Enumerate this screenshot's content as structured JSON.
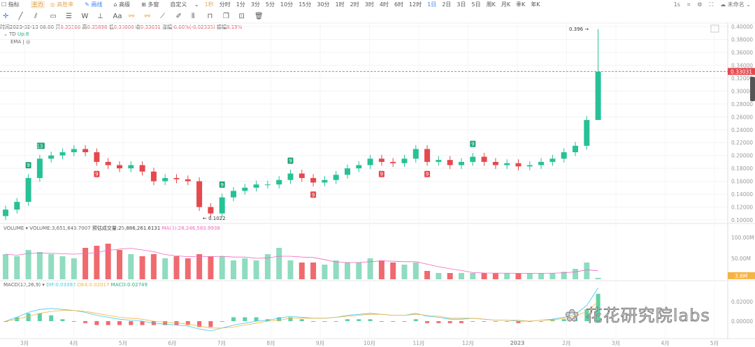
{
  "toolbar": {
    "indicator": "指标",
    "main_badge": "主力",
    "win_rate": "高胜率",
    "draw": "画线",
    "advanced": "高级",
    "multi_window": "多窗",
    "custom": "自定义",
    "custom_interval": "1秒",
    "intervals": [
      "分时",
      "1分",
      "3分",
      "5分",
      "10分",
      "15分",
      "30分",
      "1时",
      "2时",
      "3时",
      "4时",
      "6时",
      "12时",
      "1日",
      "2日",
      "3日",
      "5日",
      "周K",
      "月K",
      "季K",
      "年K"
    ],
    "active_interval": "1日",
    "right": {
      "speed": "1s",
      "layout_name": "未命名"
    },
    "drawing_tools": [
      "crosshair-icon",
      "line-icon",
      "parallel-line-icon",
      "rectangle-icon",
      "fib-icon",
      "wave-icon",
      "text-tool-icon",
      "text-icon",
      "magnet-icon",
      "magnet-strong-icon",
      "ruler-icon",
      "pencil-icon",
      "lock-icon",
      "unlock-icon",
      "copy-icon",
      "hide-icon",
      "trash-icon"
    ],
    "text_tool_label": "Aa"
  },
  "info": {
    "time_label": "时间",
    "time": "2023-02-13 08:00",
    "open_label": "开",
    "open": "0.35366",
    "high_label": "高",
    "high": "0.35898",
    "low_label": "低",
    "low": "0.33000",
    "close_label": "收",
    "close": "0.33031",
    "change_label": "涨幅",
    "change": "-6.60%(-0.02335)",
    "amp_label": "振幅",
    "amp": "8.19%"
  },
  "indicators": {
    "td": "TD",
    "td_value": "Up:8",
    "ema": "EMA"
  },
  "volume_info": {
    "name": "VOLUME",
    "volume": "VOLUME:3,651,640.7007",
    "est": "预估成交量:25,886,261.6131",
    "ma": "MA(5):28,246,583.9938"
  },
  "macd_info": {
    "name": "MACD(12,26,9)",
    "dif": "DIF:0.03392",
    "dea": "DEA:0.02017",
    "macd": "MACD:0.02749"
  },
  "colors": {
    "up": "#26c196",
    "down": "#e5484d",
    "ma": "#f067c0",
    "dif": "#46c8e0",
    "dea": "#f5b342",
    "accent": "#3b82f6"
  },
  "watermark": "花花研究院labs",
  "chart_data": {
    "type": "candlestick",
    "period": "weekly approximation of daily candles",
    "x_labels": [
      "3月",
      "4月",
      "5月",
      "6月",
      "7月",
      "8月",
      "9月",
      "10月",
      "11月",
      "12月",
      "2023",
      "2月",
      "3月",
      "4月",
      "5月"
    ],
    "price_ticks": [
      "0.40000",
      "0.38000",
      "0.36000",
      "0.34000",
      "0.32000",
      "0.30000",
      "0.28000",
      "0.26000",
      "0.24000",
      "0.22000",
      "0.20000",
      "0.18000",
      "0.16000",
      "0.14000",
      "0.12000",
      "0.10000"
    ],
    "ylim": [
      0.1,
      0.4
    ],
    "close": [
      0.116,
      0.128,
      0.165,
      0.195,
      0.2,
      0.205,
      0.21,
      0.205,
      0.19,
      0.185,
      0.18,
      0.185,
      0.175,
      0.16,
      0.165,
      0.163,
      0.16,
      0.12,
      0.11,
      0.135,
      0.145,
      0.15,
      0.155,
      0.155,
      0.162,
      0.172,
      0.165,
      0.158,
      0.162,
      0.17,
      0.18,
      0.185,
      0.195,
      0.19,
      0.188,
      0.195,
      0.21,
      0.19,
      0.193,
      0.185,
      0.19,
      0.198,
      0.19,
      0.185,
      0.188,
      0.183,
      0.185,
      0.19,
      0.195,
      0.205,
      0.215,
      0.255,
      0.33
    ],
    "last_price": "0.33031",
    "high_label": "0.396",
    "low_label": "0.1022",
    "td_marks": [
      {
        "i": 3,
        "text": "13",
        "type": "up"
      },
      {
        "i": 2,
        "text": "9",
        "type": "up"
      },
      {
        "i": 8,
        "text": "9",
        "type": "down"
      },
      {
        "i": 19,
        "text": "9",
        "type": "up"
      },
      {
        "i": 25,
        "text": "9",
        "type": "up"
      },
      {
        "i": 27,
        "text": "9",
        "type": "down"
      },
      {
        "i": 33,
        "text": "9",
        "type": "down"
      },
      {
        "i": 37,
        "text": "9",
        "type": "down"
      },
      {
        "i": 41,
        "text": "9",
        "type": "up"
      }
    ],
    "volume_ticks": [
      "100.00M",
      "50.00M"
    ],
    "volume_last": "3.6M",
    "volume_m": [
      60,
      55,
      70,
      65,
      60,
      55,
      50,
      75,
      80,
      85,
      70,
      60,
      55,
      60,
      50,
      55,
      50,
      60,
      55,
      55,
      45,
      50,
      45,
      60,
      75,
      45,
      40,
      40,
      35,
      45,
      40,
      40,
      50,
      45,
      40,
      35,
      40,
      20,
      15,
      15,
      15,
      15,
      15,
      14,
      14,
      14,
      15,
      15,
      15,
      18,
      25,
      40,
      3.6
    ],
    "macd_ticks": [
      "0.02000",
      "0.00000"
    ],
    "dif": [
      0.0,
      0.004,
      0.009,
      0.012,
      0.013,
      0.012,
      0.011,
      0.009,
      0.006,
      0.004,
      0.002,
      0.001,
      0.0,
      -0.002,
      -0.003,
      -0.004,
      -0.005,
      -0.008,
      -0.01,
      -0.007,
      -0.004,
      -0.002,
      0.0,
      0.001,
      0.003,
      0.005,
      0.004,
      0.003,
      0.003,
      0.004,
      0.006,
      0.007,
      0.008,
      0.007,
      0.006,
      0.006,
      0.008,
      0.005,
      0.004,
      0.002,
      0.002,
      0.003,
      0.002,
      0.001,
      0.001,
      0.0,
      0.0,
      0.001,
      0.002,
      0.004,
      0.007,
      0.016,
      0.034
    ],
    "dea": [
      0.0,
      0.002,
      0.005,
      0.008,
      0.01,
      0.011,
      0.011,
      0.01,
      0.008,
      0.006,
      0.004,
      0.003,
      0.002,
      0.0,
      -0.001,
      -0.002,
      -0.003,
      -0.005,
      -0.007,
      -0.007,
      -0.006,
      -0.004,
      -0.002,
      0.0,
      0.001,
      0.003,
      0.003,
      0.003,
      0.003,
      0.004,
      0.005,
      0.006,
      0.007,
      0.007,
      0.006,
      0.006,
      0.007,
      0.006,
      0.005,
      0.003,
      0.003,
      0.003,
      0.002,
      0.001,
      0.001,
      0.001,
      0.0,
      0.001,
      0.001,
      0.003,
      0.005,
      0.01,
      0.02
    ]
  }
}
